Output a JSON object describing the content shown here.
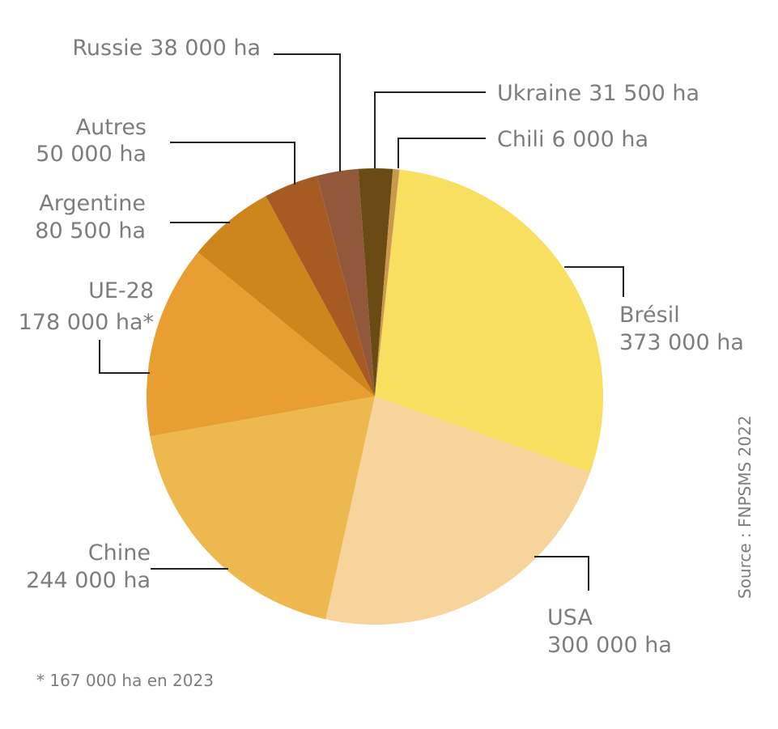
{
  "chart_data": {
    "type": "pie",
    "categories": [
      "Brésil",
      "USA",
      "Chine",
      "UE-28",
      "Argentine",
      "Autres",
      "Russie",
      "Ukraine",
      "Chili"
    ],
    "values": [
      373000,
      300000,
      244000,
      178000,
      80500,
      50000,
      38000,
      31500,
      6000
    ],
    "value_labels": [
      "373 000 ha",
      "300 000 ha",
      "244 000 ha",
      "178 000 ha*",
      "80 500 ha",
      "50 000 ha",
      "38 000 ha",
      "31 500 ha",
      "6 000 ha"
    ],
    "colors": [
      "#f8df5f",
      "#f6d49b",
      "#edb94e",
      "#e89e30",
      "#cd861c",
      "#a75b22",
      "#91593a",
      "#6b4b14",
      "#c99a4c"
    ],
    "footnote": "* 167 000 ha en 2023",
    "source": "Source : FNPSMS 2022"
  }
}
